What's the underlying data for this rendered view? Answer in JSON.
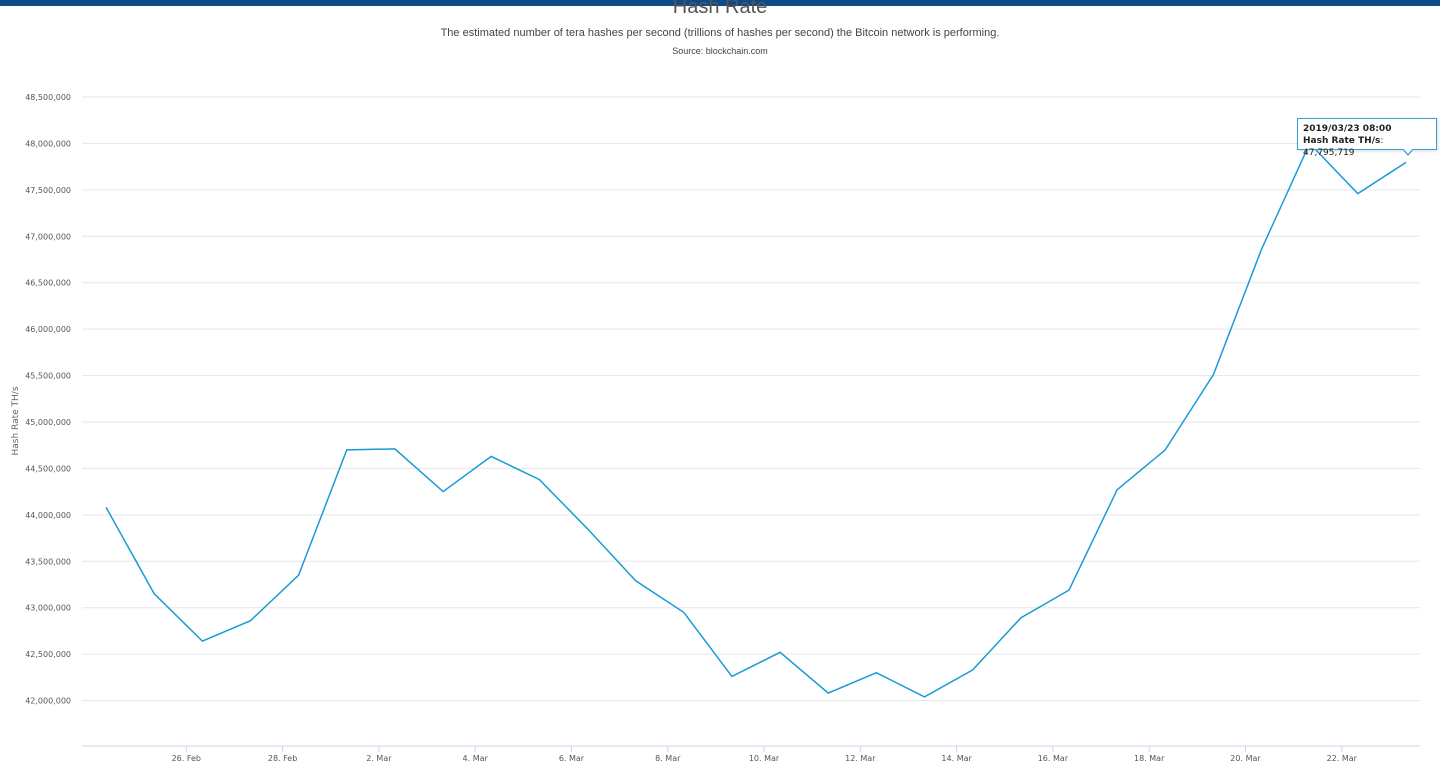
{
  "chart_data": {
    "type": "line",
    "title": "Hash Rate",
    "subtitle": "The estimated number of tera hashes per second (trillions of hashes per second) the Bitcoin network is performing.",
    "source": "Source: blockchain.com",
    "ylabel": "Hash Rate TH/s",
    "xlabel": "",
    "ylim": [
      41500000,
      48500000
    ],
    "yticks": [
      42000000,
      42500000,
      43000000,
      43500000,
      44000000,
      44500000,
      45000000,
      45500000,
      46000000,
      46500000,
      47000000,
      47500000,
      48000000,
      48500000
    ],
    "ytick_labels": [
      "42,000,000",
      "42,500,000",
      "43,000,000",
      "43,500,000",
      "44,000,000",
      "44,500,000",
      "45,000,000",
      "45,500,000",
      "46,000,000",
      "46,500,000",
      "47,000,000",
      "47,500,000",
      "48,000,000",
      "48,500,000"
    ],
    "xlim": [
      "2019-02-23T20:00",
      "2019-03-23T15:00"
    ],
    "xticks": [
      "2019-02-26",
      "2019-02-28",
      "2019-03-02",
      "2019-03-04",
      "2019-03-06",
      "2019-03-08",
      "2019-03-10",
      "2019-03-12",
      "2019-03-14",
      "2019-03-16",
      "2019-03-18",
      "2019-03-20",
      "2019-03-22"
    ],
    "xtick_labels": [
      "26. Feb",
      "28. Feb",
      "2. Mar",
      "4. Mar",
      "6. Mar",
      "8. Mar",
      "10. Mar",
      "12. Mar",
      "14. Mar",
      "16. Mar",
      "18. Mar",
      "20. Mar",
      "22. Mar"
    ],
    "grid": true,
    "color": "#1a9bd7",
    "series": [
      {
        "name": "Hash Rate TH/s",
        "x": [
          "2019-02-24T08:00",
          "2019-02-25T08:00",
          "2019-02-26T08:00",
          "2019-02-27T08:00",
          "2019-02-28T08:00",
          "2019-03-01T08:00",
          "2019-03-02T08:00",
          "2019-03-03T08:00",
          "2019-03-04T08:00",
          "2019-03-05T08:00",
          "2019-03-06T08:00",
          "2019-03-07T08:00",
          "2019-03-08T08:00",
          "2019-03-09T08:00",
          "2019-03-10T08:00",
          "2019-03-11T08:00",
          "2019-03-12T08:00",
          "2019-03-13T08:00",
          "2019-03-14T08:00",
          "2019-03-15T08:00",
          "2019-03-16T08:00",
          "2019-03-17T08:00",
          "2019-03-18T08:00",
          "2019-03-19T08:00",
          "2019-03-20T08:00",
          "2019-03-21T08:00",
          "2019-03-22T08:00",
          "2019-03-23T08:00"
        ],
        "values": [
          44080000,
          43150000,
          42640000,
          42860000,
          43350000,
          44700000,
          44710000,
          44250000,
          44630000,
          44380000,
          43850000,
          43290000,
          42950000,
          42260000,
          42520000,
          42080000,
          42300000,
          42040000,
          42330000,
          42890000,
          43190000,
          44270000,
          44700000,
          45510000,
          46860000,
          48000000,
          47460000,
          47795719
        ]
      }
    ]
  },
  "tooltip": {
    "date": "2019/03/23 08:00",
    "series_label": "Hash Rate TH/s",
    "value": "47,795,719"
  }
}
